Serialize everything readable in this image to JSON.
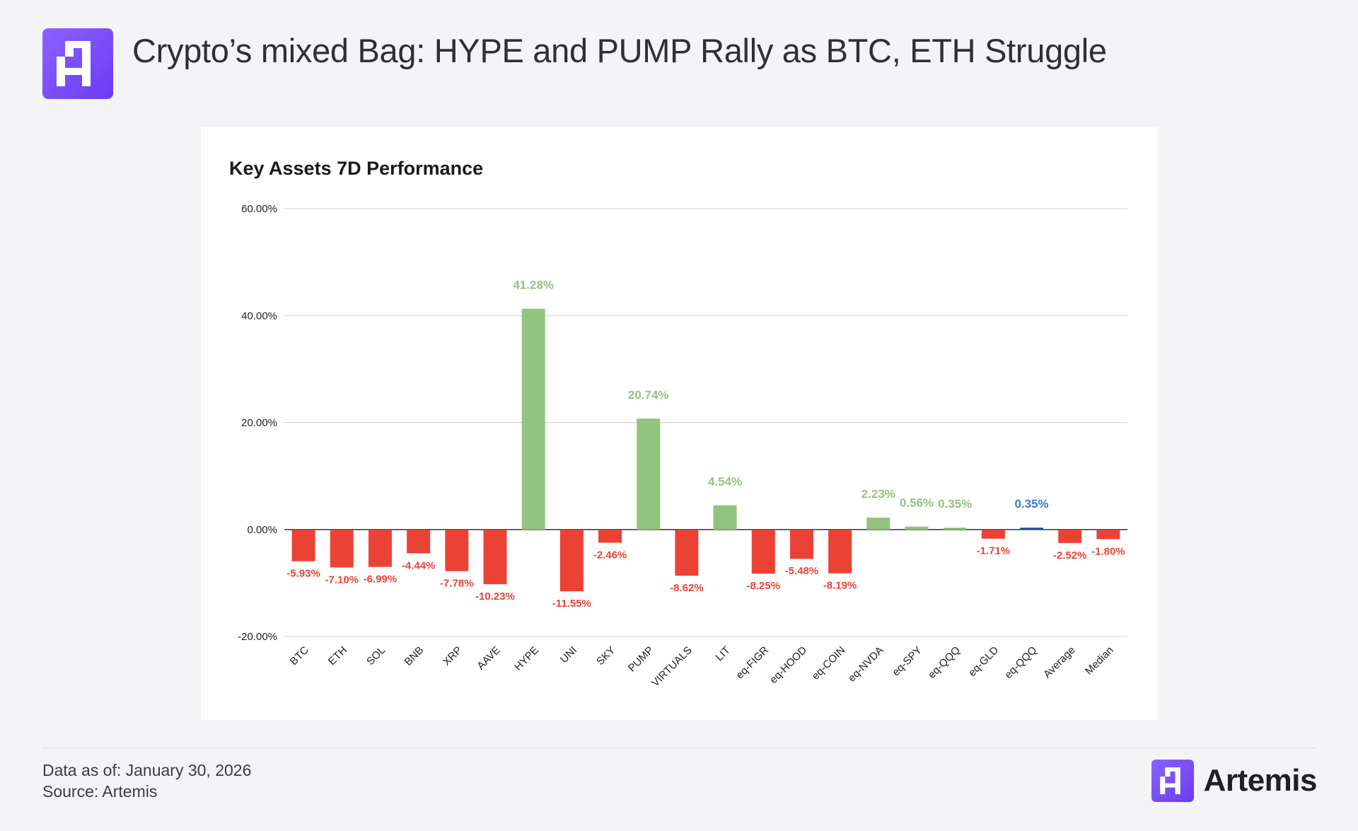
{
  "header": {
    "title": "Crypto’s mixed Bag: HYPE and PUMP Rally as BTC, ETH Struggle",
    "logo_icon": "artemis-logo-icon"
  },
  "footer": {
    "data_as_of": "Data as of: January 30, 2026",
    "source": "Source: Artemis",
    "brand_name": "Artemis"
  },
  "colors": {
    "positive": "#93c47d",
    "negative": "#ea4335",
    "highlight": "#1f4e9e",
    "highlight_label": "#3c78d8",
    "accent": "#7b4dff"
  },
  "chart_data": {
    "type": "bar",
    "title": "Key Assets 7D Performance",
    "xlabel": "",
    "ylabel": "",
    "ylim": [
      -20,
      60
    ],
    "y_ticks": [
      "60.00%",
      "40.00%",
      "20.00%",
      "0.00%",
      "-20.00%"
    ],
    "y_tick_values": [
      60,
      40,
      20,
      0,
      -20
    ],
    "grid": true,
    "categories": [
      "BTC",
      "ETH",
      "SOL",
      "BNB",
      "XRP",
      "AAVE",
      "HYPE",
      "UNI",
      "SKY",
      "PUMP",
      "VIRTUALS",
      "LIT",
      "eq-FIGR",
      "eq-HOOD",
      "eq-COIN",
      "eq-NVDA",
      "eq-SPY",
      "eq-QQQ",
      "eq-GLD",
      "eq-QQQ",
      "Average",
      "Median"
    ],
    "values": [
      -5.93,
      -7.1,
      -6.99,
      -4.44,
      -7.78,
      -10.23,
      41.28,
      -11.55,
      -2.46,
      20.74,
      -8.62,
      4.54,
      -8.25,
      -5.48,
      -8.19,
      2.23,
      0.56,
      0.35,
      -1.71,
      0.35,
      -2.52,
      -1.8
    ],
    "labels": [
      "-5.93%",
      "-7.10%",
      "-6.99%",
      "-4.44%",
      "-7.78%",
      "-10.23%",
      "41.28%",
      "-11.55%",
      "-2.46%",
      "20.74%",
      "-8.62%",
      "4.54%",
      "-8.25%",
      "-5.48%",
      "-8.19%",
      "2.23%",
      "0.56%",
      "0.35%",
      "-1.71%",
      "0.35%",
      "-2.52%",
      "-1.80%"
    ],
    "highlight_index": 19
  }
}
